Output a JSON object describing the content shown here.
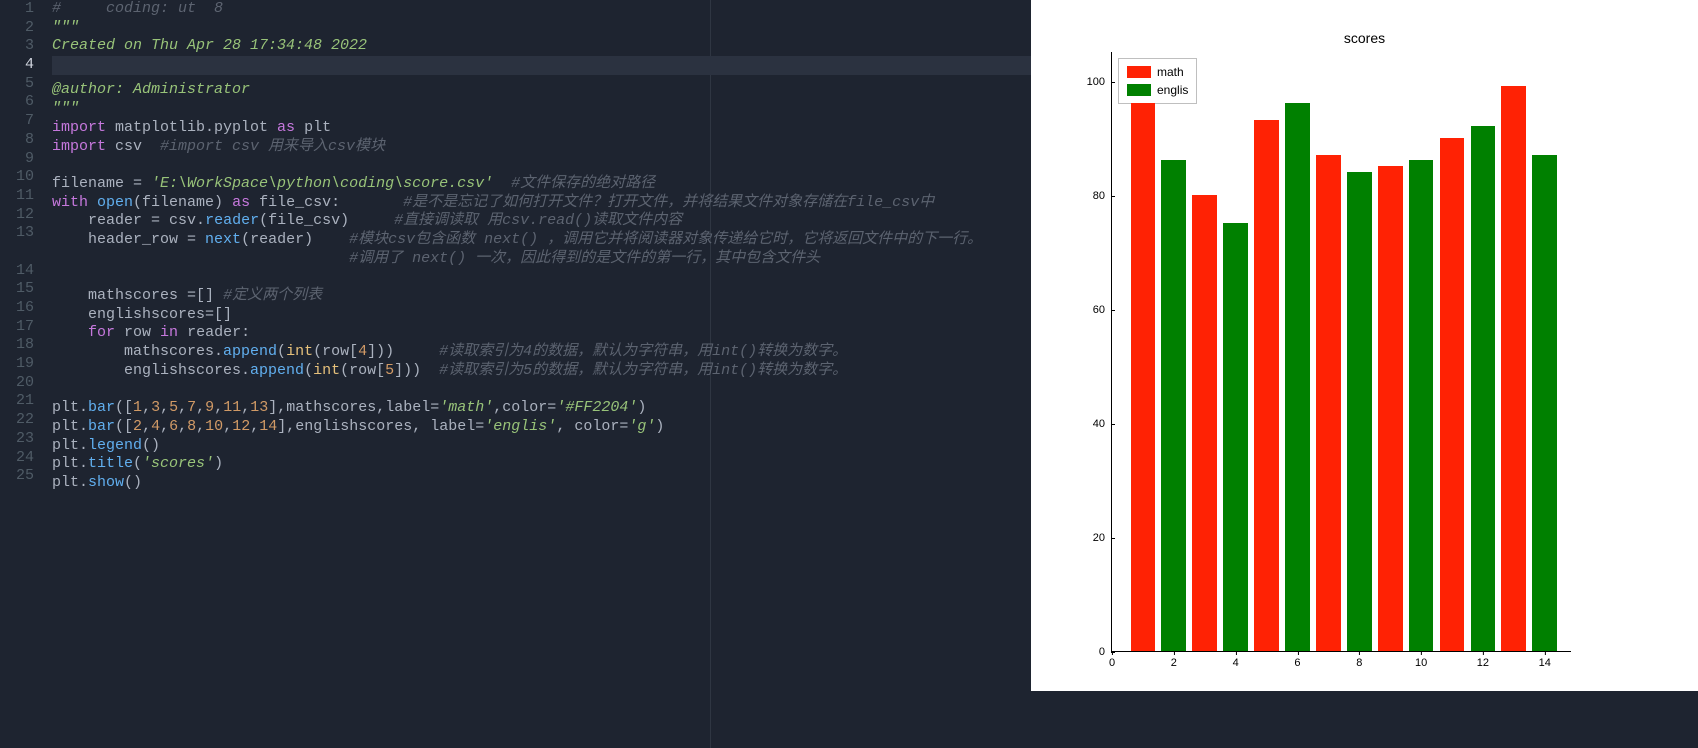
{
  "editor": {
    "background_color": "#1e2430",
    "text_color": "#c0c5ce",
    "gutter_color": "#4f5b66",
    "active_gutter_color": "#d0d5de",
    "highlight_color": "#2b3240",
    "ruler_color": "#2f3642",
    "font_size": 15,
    "active_line": 4,
    "syntax_colors": {
      "keyword": "#c678dd",
      "string": "#98c379",
      "comment": "#5c6370",
      "function": "#61afef",
      "builtin": "#e5c07b",
      "number": "#d19a66",
      "identifier": "#abb2bf"
    },
    "line_numbers": [
      1,
      2,
      3,
      4,
      5,
      6,
      7,
      8,
      9,
      10,
      11,
      12,
      13,
      "",
      14,
      15,
      16,
      17,
      18,
      19,
      20,
      21,
      22,
      23,
      24,
      25
    ],
    "code_lines": [
      {
        "n": 1,
        "tokens": [
          [
            "cmt",
            "#     coding: ut  8"
          ]
        ]
      },
      {
        "n": 2,
        "tokens": [
          [
            "cmtdoc",
            "\"\"\""
          ]
        ]
      },
      {
        "n": 3,
        "tokens": [
          [
            "cmtdoc",
            "Created on Thu Apr 28 17:34:48 2022"
          ]
        ]
      },
      {
        "n": 4,
        "tokens": [],
        "highlight": true
      },
      {
        "n": 5,
        "tokens": [
          [
            "cmtdoc",
            "@author: Administrator"
          ]
        ]
      },
      {
        "n": 6,
        "tokens": [
          [
            "cmtdoc",
            "\"\"\""
          ]
        ]
      },
      {
        "n": 7,
        "tokens": [
          [
            "kw",
            "import"
          ],
          [
            "id",
            " matplotlib.pyplot "
          ],
          [
            "kw",
            "as"
          ],
          [
            "id",
            " plt"
          ]
        ]
      },
      {
        "n": 8,
        "tokens": [
          [
            "kw",
            "import"
          ],
          [
            "id",
            " csv  "
          ],
          [
            "cmt",
            "#import csv 用来导入csv模块"
          ]
        ]
      },
      {
        "n": 9,
        "tokens": []
      },
      {
        "n": 10,
        "tokens": [
          [
            "id",
            "filename "
          ],
          [
            "op",
            "= "
          ],
          [
            "str",
            "'E:\\WorkSpace\\python\\coding\\score.csv'"
          ],
          [
            "id",
            "  "
          ],
          [
            "cmt",
            "#文件保存的绝对路径"
          ]
        ]
      },
      {
        "n": 11,
        "tokens": [
          [
            "kw",
            "with"
          ],
          [
            "id",
            " "
          ],
          [
            "fn",
            "open"
          ],
          [
            "id",
            "(filename) "
          ],
          [
            "kw",
            "as"
          ],
          [
            "id",
            " file_csv:       "
          ],
          [
            "cmt",
            "#是不是忘记了如何打开文件？打开文件，并将结果文件对象存储在file_csv中"
          ]
        ]
      },
      {
        "n": 12,
        "tokens": [
          [
            "id",
            "    reader "
          ],
          [
            "op",
            "= "
          ],
          [
            "id",
            "csv."
          ],
          [
            "fn",
            "reader"
          ],
          [
            "id",
            "(file_csv)     "
          ],
          [
            "cmt",
            "#直接调读取 用csv.read()读取文件内容"
          ]
        ]
      },
      {
        "n": 13,
        "tokens": [
          [
            "id",
            "    header_row "
          ],
          [
            "op",
            "= "
          ],
          [
            "fn",
            "next"
          ],
          [
            "id",
            "(reader)    "
          ],
          [
            "cmt",
            "#模块csv包含函数 next() ，调用它并将阅读器对象传递给它时，它将返回文件中的下一行。"
          ]
        ]
      },
      {
        "n": "",
        "tokens": [
          [
            "id",
            "                                 "
          ],
          [
            "cmt",
            "#调用了 next() 一次，因此得到的是文件的第一行，其中包含文件头"
          ]
        ]
      },
      {
        "n": 14,
        "tokens": []
      },
      {
        "n": 15,
        "tokens": [
          [
            "id",
            "    mathscores "
          ],
          [
            "op",
            "="
          ],
          [
            "id",
            "[] "
          ],
          [
            "cmt",
            "#定义两个列表"
          ]
        ]
      },
      {
        "n": 16,
        "tokens": [
          [
            "id",
            "    englishscores"
          ],
          [
            "op",
            "="
          ],
          [
            "id",
            "[]"
          ]
        ]
      },
      {
        "n": 17,
        "tokens": [
          [
            "id",
            "    "
          ],
          [
            "kw",
            "for"
          ],
          [
            "id",
            " row "
          ],
          [
            "kw",
            "in"
          ],
          [
            "id",
            " reader:"
          ]
        ]
      },
      {
        "n": 18,
        "tokens": [
          [
            "id",
            "        mathscores."
          ],
          [
            "fn",
            "append"
          ],
          [
            "id",
            "("
          ],
          [
            "builtin",
            "int"
          ],
          [
            "id",
            "(row["
          ],
          [
            "num",
            "4"
          ],
          [
            "id",
            "]))     "
          ],
          [
            "cmt",
            "#读取索引为4的数据，默认为字符串，用int()转换为数字。"
          ]
        ]
      },
      {
        "n": 19,
        "tokens": [
          [
            "id",
            "        englishscores."
          ],
          [
            "fn",
            "append"
          ],
          [
            "id",
            "("
          ],
          [
            "builtin",
            "int"
          ],
          [
            "id",
            "(row["
          ],
          [
            "num",
            "5"
          ],
          [
            "id",
            "]))  "
          ],
          [
            "cmt",
            "#读取索引为5的数据，默认为字符串，用int()转换为数字。"
          ]
        ]
      },
      {
        "n": 20,
        "tokens": []
      },
      {
        "n": 21,
        "tokens": [
          [
            "id",
            "plt."
          ],
          [
            "fn",
            "bar"
          ],
          [
            "id",
            "(["
          ],
          [
            "num",
            "1"
          ],
          [
            "id",
            ","
          ],
          [
            "num",
            "3"
          ],
          [
            "id",
            ","
          ],
          [
            "num",
            "5"
          ],
          [
            "id",
            ","
          ],
          [
            "num",
            "7"
          ],
          [
            "id",
            ","
          ],
          [
            "num",
            "9"
          ],
          [
            "id",
            ","
          ],
          [
            "num",
            "11"
          ],
          [
            "id",
            ","
          ],
          [
            "num",
            "13"
          ],
          [
            "id",
            "],mathscores,label="
          ],
          [
            "str",
            "'math'"
          ],
          [
            "id",
            ",color="
          ],
          [
            "str",
            "'#FF2204'"
          ],
          [
            "id",
            ")"
          ]
        ]
      },
      {
        "n": 22,
        "tokens": [
          [
            "id",
            "plt."
          ],
          [
            "fn",
            "bar"
          ],
          [
            "id",
            "(["
          ],
          [
            "num",
            "2"
          ],
          [
            "id",
            ","
          ],
          [
            "num",
            "4"
          ],
          [
            "id",
            ","
          ],
          [
            "num",
            "6"
          ],
          [
            "id",
            ","
          ],
          [
            "num",
            "8"
          ],
          [
            "id",
            ","
          ],
          [
            "num",
            "10"
          ],
          [
            "id",
            ","
          ],
          [
            "num",
            "12"
          ],
          [
            "id",
            ","
          ],
          [
            "num",
            "14"
          ],
          [
            "id",
            "],englishscores, label="
          ],
          [
            "str",
            "'englis'"
          ],
          [
            "id",
            ", color="
          ],
          [
            "str",
            "'g'"
          ],
          [
            "id",
            ")"
          ]
        ]
      },
      {
        "n": 23,
        "tokens": [
          [
            "id",
            "plt."
          ],
          [
            "fn",
            "legend"
          ],
          [
            "id",
            "()"
          ]
        ]
      },
      {
        "n": 24,
        "tokens": [
          [
            "id",
            "plt."
          ],
          [
            "fn",
            "title"
          ],
          [
            "id",
            "("
          ],
          [
            "str",
            "'scores'"
          ],
          [
            "id",
            ")"
          ]
        ]
      },
      {
        "n": 25,
        "tokens": [
          [
            "id",
            "plt."
          ],
          [
            "fn",
            "show"
          ],
          [
            "id",
            "()"
          ]
        ]
      }
    ]
  },
  "chart": {
    "type": "bar",
    "title": "scores",
    "title_fontsize": 14,
    "background_color": "#ffffff",
    "axis_color": "#000000",
    "tick_fontsize": 11,
    "xlim": [
      0,
      14.85
    ],
    "ylim": [
      0,
      105
    ],
    "xticks": [
      0,
      2,
      4,
      6,
      8,
      10,
      12,
      14
    ],
    "yticks": [
      0,
      20,
      40,
      60,
      80,
      100
    ],
    "bar_width": 0.8,
    "series": [
      {
        "label": "math",
        "color": "#FF2204",
        "x": [
          1,
          3,
          5,
          7,
          9,
          11,
          13
        ],
        "y": [
          96,
          80,
          93,
          87,
          85,
          90,
          99
        ]
      },
      {
        "label": "englis",
        "color": "#008000",
        "x": [
          2,
          4,
          6,
          8,
          10,
          12,
          14
        ],
        "y": [
          86,
          75,
          96,
          84,
          86,
          92,
          87
        ]
      }
    ],
    "legend": {
      "position": "upper-left",
      "border_color": "#bfbfbf",
      "items": [
        {
          "label": "math",
          "color": "#FF2204"
        },
        {
          "label": "englis",
          "color": "#008000"
        }
      ]
    }
  }
}
